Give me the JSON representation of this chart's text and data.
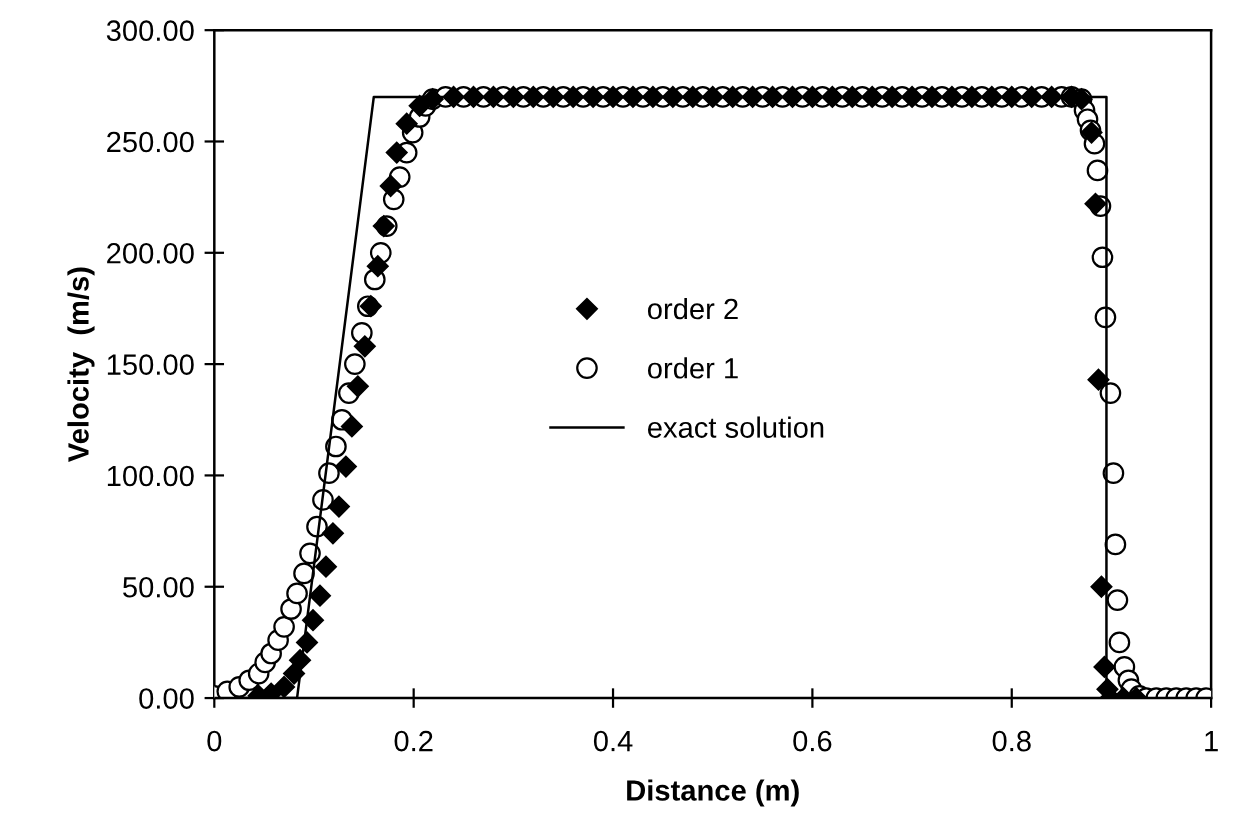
{
  "chart_data": {
    "type": "scatter",
    "xlabel": "Distance (m)",
    "ylabel": "Velocity  (m/s)",
    "xlim": [
      0,
      1
    ],
    "ylim": [
      0,
      300
    ],
    "xticks": [
      0,
      0.2,
      0.4,
      0.6,
      0.8,
      1
    ],
    "yticks": [
      {
        "value": 0,
        "label": "0.00"
      },
      {
        "value": 50,
        "label": "50.00"
      },
      {
        "value": 100,
        "label": "100.00"
      },
      {
        "value": 150,
        "label": "150.00"
      },
      {
        "value": 200,
        "label": "200.00"
      },
      {
        "value": 250,
        "label": "250.00"
      },
      {
        "value": 300,
        "label": "300.00"
      }
    ],
    "grid": false,
    "legend": "center",
    "series": [
      {
        "name": "order 2",
        "marker": "diamond",
        "color": "#000000",
        "x": [
          0.0445,
          0.057,
          0.07,
          0.08,
          0.086,
          0.093,
          0.099,
          0.106,
          0.112,
          0.119,
          0.125,
          0.132,
          0.138,
          0.144,
          0.151,
          0.157,
          0.164,
          0.17,
          0.177,
          0.183,
          0.193,
          0.206,
          0.219,
          0.24,
          0.26,
          0.28,
          0.3,
          0.32,
          0.34,
          0.36,
          0.38,
          0.4,
          0.42,
          0.44,
          0.46,
          0.48,
          0.5,
          0.52,
          0.54,
          0.56,
          0.58,
          0.6,
          0.62,
          0.64,
          0.66,
          0.68,
          0.7,
          0.72,
          0.74,
          0.76,
          0.78,
          0.8,
          0.82,
          0.84,
          0.86,
          0.87,
          0.88,
          0.884,
          0.887,
          0.89,
          0.893,
          0.896,
          0.899,
          0.912,
          0.925
        ],
        "values": [
          1,
          2,
          5,
          11,
          17,
          25,
          35,
          46,
          59,
          74,
          86,
          104,
          122,
          140,
          158,
          176,
          194,
          212,
          230,
          245,
          258,
          266,
          269,
          270,
          270,
          270,
          270,
          270,
          270,
          270,
          270,
          270,
          270,
          270,
          270,
          270,
          270,
          270,
          270,
          270,
          270,
          270,
          270,
          270,
          270,
          270,
          270,
          270,
          270,
          270,
          270,
          270,
          270,
          270,
          270,
          269,
          254,
          222,
          143,
          50,
          14,
          4,
          0,
          0,
          0
        ]
      },
      {
        "name": "order 1",
        "marker": "circle",
        "color": "#000000",
        "x": [
          0,
          0.013,
          0.025,
          0.035,
          0.0445,
          0.051,
          0.057,
          0.064,
          0.07,
          0.077,
          0.083,
          0.09,
          0.096,
          0.103,
          0.109,
          0.115,
          0.122,
          0.128,
          0.135,
          0.141,
          0.148,
          0.154,
          0.161,
          0.167,
          0.173,
          0.18,
          0.186,
          0.193,
          0.199,
          0.206,
          0.212,
          0.219,
          0.232,
          0.25,
          0.27,
          0.29,
          0.31,
          0.33,
          0.35,
          0.37,
          0.39,
          0.41,
          0.43,
          0.45,
          0.47,
          0.49,
          0.51,
          0.53,
          0.55,
          0.57,
          0.59,
          0.61,
          0.63,
          0.65,
          0.67,
          0.69,
          0.71,
          0.73,
          0.75,
          0.77,
          0.79,
          0.81,
          0.83,
          0.85,
          0.86,
          0.87,
          0.873,
          0.876,
          0.879,
          0.883,
          0.886,
          0.889,
          0.891,
          0.894,
          0.899,
          0.902,
          0.904,
          0.906,
          0.908,
          0.913,
          0.917,
          0.92,
          0.928,
          0.935,
          0.945,
          0.955,
          0.965,
          0.975,
          0.985,
          0.995
        ],
        "values": [
          1,
          3,
          5,
          8,
          11,
          16,
          20,
          26,
          32,
          40,
          47,
          56,
          65,
          77,
          89,
          101,
          113,
          125,
          137,
          150,
          164,
          176,
          188,
          200,
          212,
          224,
          234,
          245,
          254,
          261,
          266,
          269,
          270,
          270,
          270,
          270,
          270,
          270,
          270,
          270,
          270,
          270,
          270,
          270,
          270,
          270,
          270,
          270,
          270,
          270,
          270,
          270,
          270,
          270,
          270,
          270,
          270,
          270,
          270,
          270,
          270,
          270,
          270,
          270,
          270,
          269,
          264,
          260,
          255,
          249,
          237,
          221,
          198,
          171,
          137,
          101,
          69,
          44,
          25,
          14,
          8,
          4,
          1,
          0,
          0,
          0,
          0,
          0,
          0,
          0
        ]
      },
      {
        "name": "exact solution",
        "type": "line",
        "marker": "none",
        "line_style": "solid",
        "color": "#000000",
        "x": [
          0,
          0.083,
          0.16,
          0.895,
          0.895,
          1
        ],
        "values": [
          0,
          0,
          270,
          270,
          0,
          0
        ]
      }
    ]
  }
}
